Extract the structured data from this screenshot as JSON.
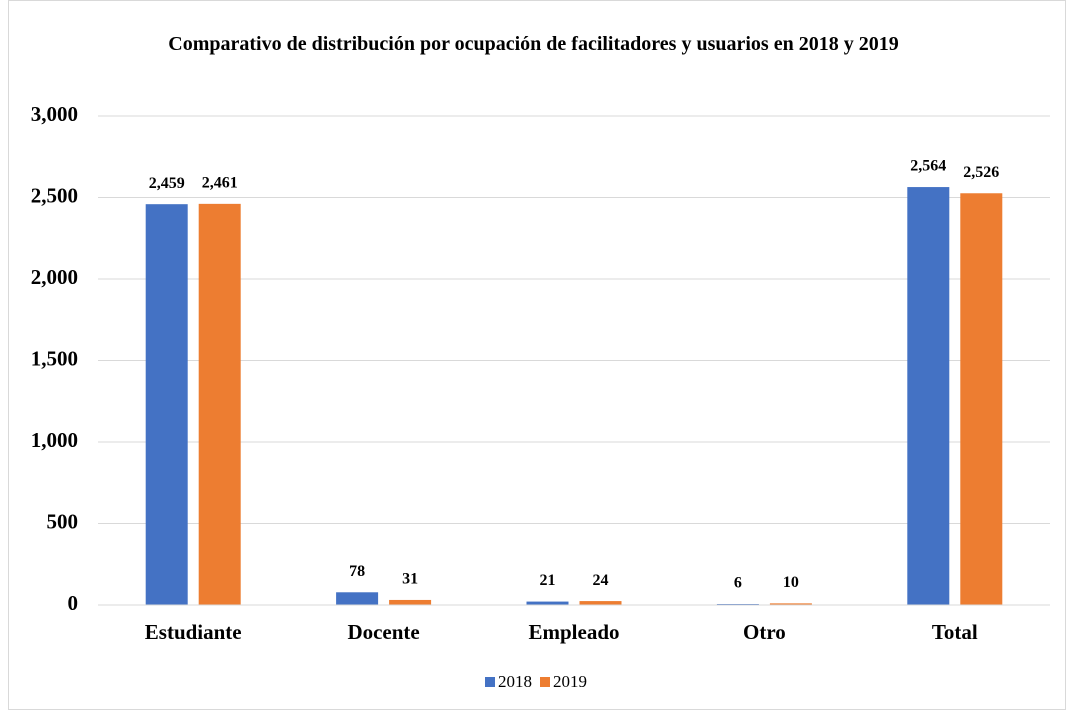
{
  "chart_data": {
    "type": "bar",
    "title": "Comparativo de distribución por ocupación de facilitadores y usuarios en 2018 y 2019",
    "categories": [
      "Estudiante",
      "Docente",
      "Empleado",
      "Otro",
      "Total"
    ],
    "series": [
      {
        "name": "2018",
        "color": "#4472c4",
        "values": [
          2459,
          78,
          21,
          6,
          2564
        ],
        "value_labels": [
          "2,459",
          "78",
          "21",
          "6",
          "2,564"
        ]
      },
      {
        "name": "2019",
        "color": "#ed7d31",
        "values": [
          2461,
          31,
          24,
          10,
          2526
        ],
        "value_labels": [
          "2,461",
          "31",
          "24",
          "10",
          "2,526"
        ]
      }
    ],
    "ylim": [
      0,
      3000
    ],
    "yticks": [
      0,
      500,
      {
        "value": 1000,
        "label": "1,000"
      },
      {
        "value": 1500,
        "label": "1,500"
      },
      {
        "value": 2000,
        "label": "2,000"
      },
      {
        "value": 2500,
        "label": "2,500"
      },
      {
        "value": 3000,
        "label": "3,000"
      }
    ],
    "grid": true,
    "legend": "bottom"
  }
}
